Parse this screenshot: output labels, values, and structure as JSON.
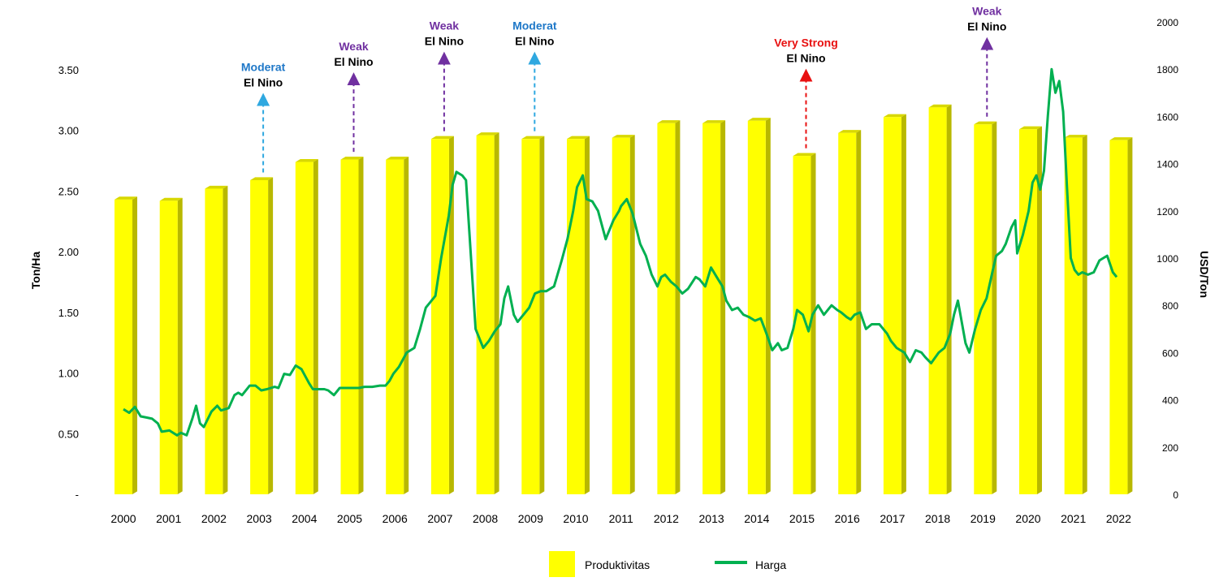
{
  "chart_data": {
    "type": "bar",
    "categories": [
      "2000",
      "2001",
      "2002",
      "2003",
      "2004",
      "2005",
      "2006",
      "2007",
      "2008",
      "2009",
      "2010",
      "2011",
      "2012",
      "2013",
      "2014",
      "2015",
      "2016",
      "2017",
      "2018",
      "2019",
      "2020",
      "2021",
      "2022"
    ],
    "series": [
      {
        "name": "Produktivitas",
        "type": "bar",
        "axis": "left",
        "color": "#FFFF00",
        "values": [
          2.43,
          2.42,
          2.52,
          2.59,
          2.74,
          2.76,
          2.76,
          2.93,
          2.96,
          2.93,
          2.93,
          2.94,
          3.06,
          3.06,
          3.08,
          2.79,
          2.98,
          3.11,
          3.19,
          3.05,
          3.01,
          2.94,
          2.92
        ]
      },
      {
        "name": "Harga",
        "type": "line",
        "axis": "right",
        "color": "#00B050",
        "points": [
          [
            2000.0,
            360
          ],
          [
            2000.15,
            345
          ],
          [
            2000.3,
            370
          ],
          [
            2000.45,
            330
          ],
          [
            2000.6,
            325
          ],
          [
            2000.75,
            320
          ],
          [
            2000.9,
            300
          ],
          [
            2001.0,
            265
          ],
          [
            2001.2,
            270
          ],
          [
            2001.4,
            250
          ],
          [
            2001.5,
            260
          ],
          [
            2001.65,
            250
          ],
          [
            2001.8,
            320
          ],
          [
            2001.9,
            375
          ],
          [
            2002.0,
            300
          ],
          [
            2002.1,
            285
          ],
          [
            2002.3,
            350
          ],
          [
            2002.45,
            375
          ],
          [
            2002.55,
            355
          ],
          [
            2002.75,
            365
          ],
          [
            2002.9,
            420
          ],
          [
            2003.0,
            430
          ],
          [
            2003.1,
            420
          ],
          [
            2003.3,
            460
          ],
          [
            2003.45,
            460
          ],
          [
            2003.6,
            440
          ],
          [
            2003.75,
            445
          ],
          [
            2003.95,
            455
          ],
          [
            2004.05,
            450
          ],
          [
            2004.2,
            510
          ],
          [
            2004.35,
            505
          ],
          [
            2004.5,
            545
          ],
          [
            2004.65,
            530
          ],
          [
            2004.85,
            470
          ],
          [
            2004.95,
            445
          ],
          [
            2005.1,
            445
          ],
          [
            2005.25,
            445
          ],
          [
            2005.35,
            440
          ],
          [
            2005.5,
            420
          ],
          [
            2005.65,
            450
          ],
          [
            2005.8,
            450
          ],
          [
            2005.95,
            450
          ],
          [
            2006.15,
            450
          ],
          [
            2006.3,
            455
          ],
          [
            2006.5,
            455
          ],
          [
            2006.7,
            460
          ],
          [
            2006.85,
            460
          ],
          [
            2006.95,
            480
          ],
          [
            2007.05,
            510
          ],
          [
            2007.2,
            540
          ],
          [
            2007.4,
            600
          ],
          [
            2007.6,
            620
          ],
          [
            2007.75,
            700
          ],
          [
            2007.9,
            790
          ],
          [
            2008.0,
            810
          ],
          [
            2008.15,
            840
          ],
          [
            2008.3,
            1000
          ],
          [
            2008.5,
            1180
          ],
          [
            2008.6,
            1310
          ],
          [
            2008.7,
            1365
          ],
          [
            2008.85,
            1350
          ],
          [
            2008.95,
            1330
          ],
          [
            2009.05,
            1080
          ],
          [
            2009.2,
            700
          ],
          [
            2009.4,
            620
          ],
          [
            2009.55,
            650
          ],
          [
            2009.7,
            690
          ],
          [
            2009.85,
            720
          ],
          [
            2009.95,
            830
          ],
          [
            2010.05,
            880
          ],
          [
            2010.2,
            760
          ],
          [
            2010.3,
            730
          ],
          [
            2010.45,
            760
          ],
          [
            2010.6,
            790
          ],
          [
            2010.75,
            850
          ],
          [
            2010.9,
            860
          ],
          [
            2011.05,
            860
          ],
          [
            2011.25,
            880
          ],
          [
            2011.45,
            990
          ],
          [
            2011.6,
            1080
          ],
          [
            2011.75,
            1200
          ],
          [
            2011.85,
            1300
          ],
          [
            2012.0,
            1350
          ],
          [
            2012.1,
            1250
          ],
          [
            2012.25,
            1240
          ],
          [
            2012.4,
            1200
          ],
          [
            2012.6,
            1080
          ],
          [
            2012.8,
            1160
          ],
          [
            2012.95,
            1200
          ],
          [
            2013.0,
            1220
          ],
          [
            2013.15,
            1250
          ],
          [
            2013.3,
            1190
          ],
          [
            2013.5,
            1060
          ],
          [
            2013.65,
            1010
          ],
          [
            2013.8,
            930
          ],
          [
            2013.95,
            880
          ],
          [
            2014.05,
            920
          ],
          [
            2014.15,
            930
          ],
          [
            2014.3,
            900
          ],
          [
            2014.45,
            880
          ],
          [
            2014.6,
            850
          ],
          [
            2014.75,
            870
          ],
          [
            2014.95,
            920
          ],
          [
            2015.05,
            910
          ],
          [
            2015.2,
            880
          ],
          [
            2015.35,
            960
          ],
          [
            2015.5,
            920
          ],
          [
            2015.65,
            880
          ],
          [
            2015.75,
            820
          ],
          [
            2015.9,
            780
          ],
          [
            2016.05,
            790
          ],
          [
            2016.2,
            760
          ],
          [
            2016.35,
            750
          ],
          [
            2016.5,
            735
          ],
          [
            2016.65,
            745
          ],
          [
            2016.8,
            680
          ],
          [
            2016.95,
            610
          ],
          [
            2017.1,
            640
          ],
          [
            2017.2,
            610
          ],
          [
            2017.35,
            620
          ],
          [
            2017.5,
            700
          ],
          [
            2017.6,
            780
          ],
          [
            2017.75,
            760
          ],
          [
            2017.9,
            690
          ],
          [
            2018.0,
            760
          ],
          [
            2018.15,
            800
          ],
          [
            2018.3,
            760
          ],
          [
            2018.5,
            800
          ],
          [
            2018.65,
            780
          ],
          [
            2018.75,
            770
          ],
          [
            2018.9,
            750
          ],
          [
            2019.0,
            740
          ],
          [
            2019.1,
            760
          ],
          [
            2019.25,
            770
          ],
          [
            2019.4,
            700
          ],
          [
            2019.55,
            720
          ],
          [
            2019.75,
            720
          ],
          [
            2019.95,
            680
          ],
          [
            2020.05,
            650
          ],
          [
            2020.2,
            620
          ],
          [
            2020.4,
            600
          ],
          [
            2020.55,
            560
          ],
          [
            2020.7,
            610
          ],
          [
            2020.85,
            600
          ],
          [
            2020.95,
            580
          ],
          [
            2021.1,
            555
          ],
          [
            2021.3,
            600
          ],
          [
            2021.45,
            620
          ],
          [
            2021.6,
            680
          ],
          [
            2021.7,
            760
          ],
          [
            2021.8,
            820
          ],
          [
            2021.9,
            730
          ],
          [
            2022.0,
            640
          ],
          [
            2022.1,
            600
          ],
          [
            2022.25,
            700
          ],
          [
            2022.4,
            780
          ],
          [
            2022.55,
            830
          ],
          [
            2022.7,
            940
          ],
          [
            2022.8,
            1010
          ],
          [
            2022.95,
            1030
          ],
          [
            2023.05,
            1060
          ],
          [
            2023.2,
            1130
          ],
          [
            2023.3,
            1160
          ],
          [
            2023.35,
            1020
          ],
          [
            2023.5,
            1100
          ],
          [
            2023.65,
            1200
          ],
          [
            2023.75,
            1320
          ],
          [
            2023.85,
            1350
          ],
          [
            2023.95,
            1290
          ],
          [
            2024.05,
            1370
          ],
          [
            2024.15,
            1600
          ],
          [
            2024.25,
            1800
          ],
          [
            2024.35,
            1700
          ],
          [
            2024.45,
            1750
          ],
          [
            2024.55,
            1620
          ],
          [
            2024.65,
            1300
          ],
          [
            2024.75,
            1000
          ],
          [
            2024.85,
            950
          ],
          [
            2024.95,
            930
          ],
          [
            2025.05,
            940
          ],
          [
            2025.2,
            930
          ],
          [
            2025.35,
            940
          ],
          [
            2025.5,
            990
          ],
          [
            2025.6,
            1000
          ],
          [
            2025.7,
            1010
          ],
          [
            2025.85,
            940
          ],
          [
            2025.95,
            920
          ]
        ]
      }
    ],
    "y_left": {
      "label": "Ton/Ha",
      "min": 0,
      "max": 3.5,
      "ticks": [
        "-",
        "0.50",
        "1.00",
        "1.50",
        "2.00",
        "2.50",
        "3.00",
        "3.50"
      ]
    },
    "y_right": {
      "label": "USD/Ton",
      "min": 0,
      "max": 2000,
      "ticks": [
        "0",
        "200",
        "400",
        "600",
        "800",
        "1000",
        "1200",
        "1400",
        "1600",
        "1800",
        "2000"
      ]
    },
    "grid": false,
    "legend": {
      "position": "bottom",
      "entries": [
        {
          "label": "Produktivitas",
          "swatch": "box",
          "color": "#FFFF00"
        },
        {
          "label": "Harga",
          "swatch": "line",
          "color": "#00B050"
        }
      ]
    },
    "annotations": [
      {
        "year": "2003",
        "strength": "Moderat",
        "label": "El Nino",
        "color": "#1F78C8",
        "arrow_color": "#2FA8E0",
        "level": 2.6
      },
      {
        "year": "2005",
        "strength": "Weak",
        "label": "El Nino",
        "color": "#7030A0",
        "arrow_color": "#7030A0",
        "level": 2.77
      },
      {
        "year": "2007",
        "strength": "Weak",
        "label": "El Nino",
        "color": "#7030A0",
        "arrow_color": "#7030A0",
        "level": 2.94
      },
      {
        "year": "2009",
        "strength": "Moderat",
        "label": "El Nino",
        "color": "#1F78C8",
        "arrow_color": "#2FA8E0",
        "level": 2.94
      },
      {
        "year": "2015",
        "strength": "Very Strong",
        "label": "El Nino",
        "color": "#E81010",
        "arrow_color": "#E81010",
        "level": 2.8
      },
      {
        "year": "2019",
        "strength": "Weak",
        "label": "El Nino",
        "color": "#7030A0",
        "arrow_color": "#7030A0",
        "level": 3.06
      }
    ]
  }
}
